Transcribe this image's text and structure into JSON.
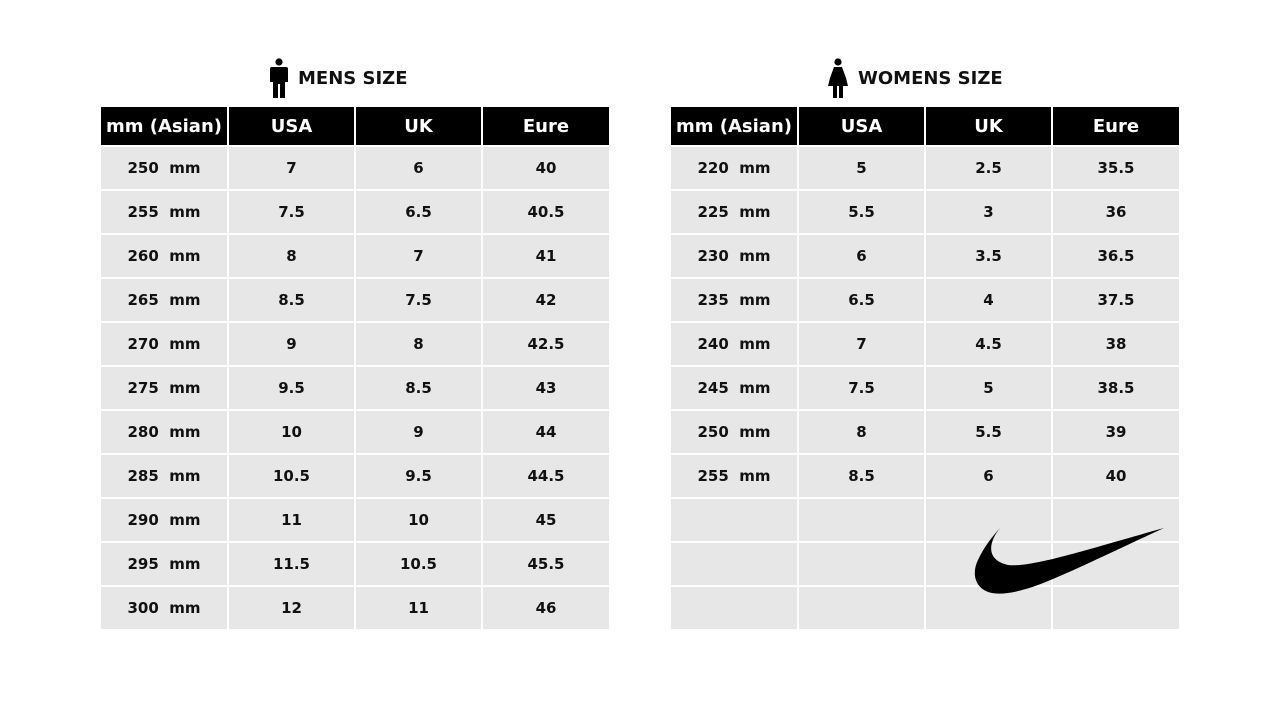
{
  "mens": {
    "title": "MENS SIZE",
    "icon": "man-icon",
    "headers": [
      "mm (Asian)",
      "USA",
      "UK",
      "Eure"
    ],
    "rows": [
      [
        "250  mm",
        "7",
        "6",
        "40"
      ],
      [
        "255  mm",
        "7.5",
        "6.5",
        "40.5"
      ],
      [
        "260  mm",
        "8",
        "7",
        "41"
      ],
      [
        "265  mm",
        "8.5",
        "7.5",
        "42"
      ],
      [
        "270  mm",
        "9",
        "8",
        "42.5"
      ],
      [
        "275  mm",
        "9.5",
        "8.5",
        "43"
      ],
      [
        "280  mm",
        "10",
        "9",
        "44"
      ],
      [
        "285  mm",
        "10.5",
        "9.5",
        "44.5"
      ],
      [
        "290  mm",
        "11",
        "10",
        "45"
      ],
      [
        "295  mm",
        "11.5",
        "10.5",
        "45.5"
      ],
      [
        "300  mm",
        "12",
        "11",
        "46"
      ]
    ]
  },
  "womens": {
    "title": "WOMENS SIZE",
    "icon": "woman-icon",
    "headers": [
      "mm (Asian)",
      "USA",
      "UK",
      "Eure"
    ],
    "rows": [
      [
        "220  mm",
        "5",
        "2.5",
        "35.5"
      ],
      [
        "225  mm",
        "5.5",
        "3",
        "36"
      ],
      [
        "230  mm",
        "6",
        "3.5",
        "36.5"
      ],
      [
        "235  mm",
        "6.5",
        "4",
        "37.5"
      ],
      [
        "240  mm",
        "7",
        "4.5",
        "38"
      ],
      [
        "245  mm",
        "7.5",
        "5",
        "38.5"
      ],
      [
        "250  mm",
        "8",
        "5.5",
        "39"
      ],
      [
        "255  mm",
        "8.5",
        "6",
        "40"
      ],
      [
        "",
        "",
        "",
        ""
      ],
      [
        "",
        "",
        "",
        ""
      ],
      [
        "",
        "",
        "",
        ""
      ]
    ]
  },
  "logo": "nike-swoosh-logo",
  "colors": {
    "header_bg": "#000000",
    "cell_bg": "#e7e7e7"
  }
}
